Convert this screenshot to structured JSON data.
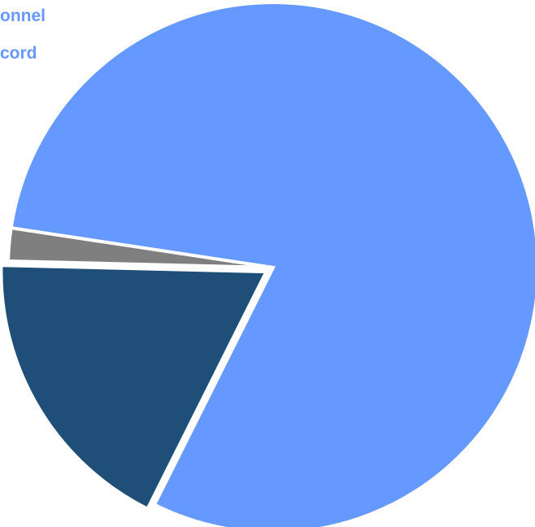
{
  "chart_data": {
    "type": "pie",
    "labels": [
      "",
      "",
      ""
    ],
    "values": [
      80,
      18,
      2
    ],
    "colors": [
      "#6699ff",
      "#1f4e79",
      "#7f7f7f"
    ],
    "exploded": [
      false,
      true,
      false
    ],
    "visible_label_fragments": [
      "onnel",
      "cord"
    ],
    "label_color": "#6699ff"
  }
}
